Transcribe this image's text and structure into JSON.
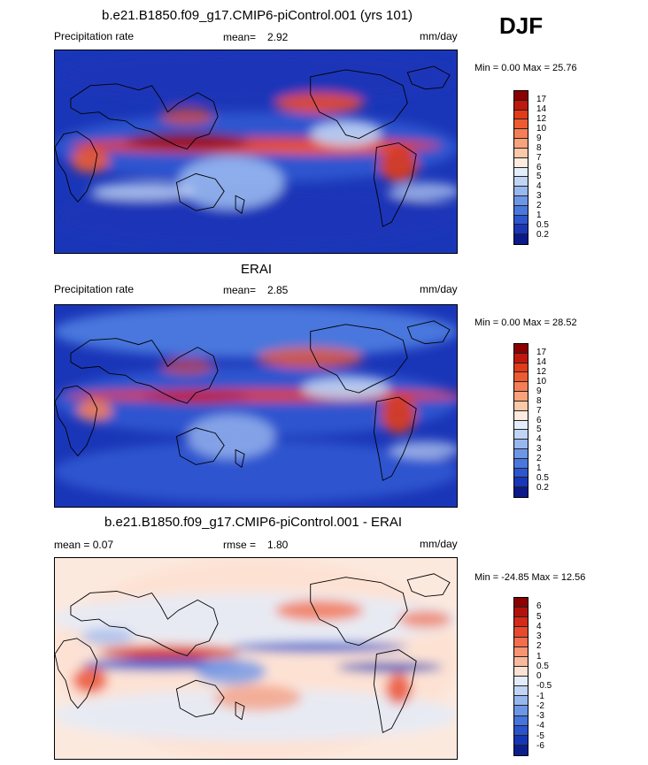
{
  "season": "DJF",
  "panels": [
    {
      "title": "b.e21.B1850.f09_g17.CMIP6-piControl.001 (yrs 101)",
      "left_label": "Precipitation rate",
      "mid_key": "mean=",
      "mid_value": "2.92",
      "units": "mm/day",
      "minmax": "Min =   0.00 Max =  25.76"
    },
    {
      "title": "ERAI",
      "left_label": "Precipitation rate",
      "mid_key": "mean=",
      "mid_value": "2.85",
      "units": "mm/day",
      "minmax": "Min =   0.00 Max =  28.52"
    },
    {
      "title": "b.e21.B1850.f09_g17.CMIP6-piControl.001 - ERAI",
      "left_label": "mean =   0.07",
      "mid_key": "rmse =",
      "mid_value": "1.80",
      "units": "mm/day",
      "minmax": "Min = -24.85 Max =  12.56"
    }
  ],
  "chart_data": [
    {
      "type": "heatmap",
      "title": "b.e21.B1850.f09_g17.CMIP6-piControl.001 (yrs 101)",
      "variable": "Precipitation rate",
      "units": "mm/day",
      "mean": 2.92,
      "min": 0.0,
      "max": 25.76,
      "colorbar_levels": [
        "17",
        "14",
        "12",
        "10",
        "9",
        "8",
        "7",
        "6",
        "5",
        "4",
        "3",
        "2",
        "1",
        "0.5",
        "0.2"
      ],
      "colorbar_colors": [
        "#8b0000",
        "#c1180e",
        "#e13b1a",
        "#ee5a32",
        "#f47e55",
        "#f8a37c",
        "#fbc8a8",
        "#fdebdf",
        "#e3edfb",
        "#c0d4f5",
        "#98b7ee",
        "#6d96e6",
        "#4a77dd",
        "#2d55cf",
        "#1a36b8",
        "#0a1a8a"
      ]
    },
    {
      "type": "heatmap",
      "title": "ERAI",
      "variable": "Precipitation rate",
      "units": "mm/day",
      "mean": 2.85,
      "min": 0.0,
      "max": 28.52,
      "colorbar_levels": [
        "17",
        "14",
        "12",
        "10",
        "9",
        "8",
        "7",
        "6",
        "5",
        "4",
        "3",
        "2",
        "1",
        "0.5",
        "0.2"
      ],
      "colorbar_colors": [
        "#8b0000",
        "#c1180e",
        "#e13b1a",
        "#ee5a32",
        "#f47e55",
        "#f8a37c",
        "#fbc8a8",
        "#fdebdf",
        "#e3edfb",
        "#c0d4f5",
        "#98b7ee",
        "#6d96e6",
        "#4a77dd",
        "#2d55cf",
        "#1a36b8",
        "#0a1a8a"
      ]
    },
    {
      "type": "heatmap",
      "title": "b.e21.B1850.f09_g17.CMIP6-piControl.001 - ERAI",
      "units": "mm/day",
      "mean": 0.07,
      "rmse": 1.8,
      "min": -24.85,
      "max": 12.56,
      "colorbar_levels": [
        "6",
        "5",
        "4",
        "3",
        "2",
        "1",
        "0.5",
        "0",
        "-0.5",
        "-1",
        "-2",
        "-3",
        "-4",
        "-5",
        "-6"
      ],
      "colorbar_colors": [
        "#8b0000",
        "#b3120c",
        "#d42a1a",
        "#e94a2c",
        "#f26e4c",
        "#f79472",
        "#fab99c",
        "#fde2d4",
        "#e2ecfa",
        "#c0d4f5",
        "#98b7ee",
        "#6d96e6",
        "#4474dc",
        "#2a53cc",
        "#1736b4",
        "#0b1e8e"
      ]
    }
  ]
}
